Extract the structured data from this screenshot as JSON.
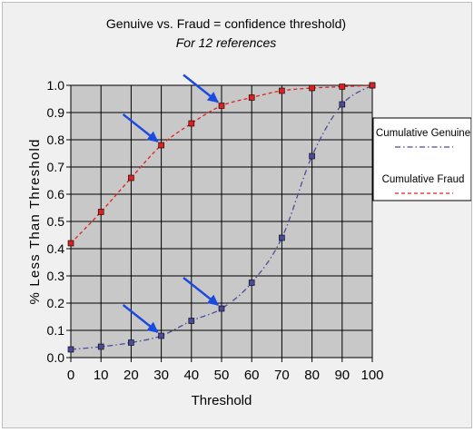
{
  "chart_data": {
    "type": "line",
    "title": "Genuive vs. Fraud = confidence threshold)",
    "subtitle": "For 12 references",
    "xlabel": "Threshold",
    "ylabel": "% Less Than Threshold",
    "xlim": [
      0,
      100
    ],
    "ylim": [
      0,
      1
    ],
    "x_ticks": [
      "0",
      "10",
      "20",
      "30",
      "40",
      "50",
      "60",
      "70",
      "80",
      "90",
      "100"
    ],
    "y_ticks": [
      "0.0",
      "0.1",
      "0.2",
      "0.3",
      "0.4",
      "0.5",
      "0.6",
      "0.7",
      "0.8",
      "0.9",
      "1.0"
    ],
    "grid": true,
    "legend_position": "right",
    "colors": {
      "plot_bg": "#c8c8c8",
      "genuine": "#4a4a9a",
      "fraud": "#e02020",
      "arrow": "#1a4ae0"
    },
    "series": [
      {
        "name": "Cumulative Genuine",
        "x": [
          0,
          10,
          20,
          30,
          40,
          50,
          60,
          70,
          80,
          90,
          100
        ],
        "values": [
          0.03,
          0.04,
          0.055,
          0.08,
          0.135,
          0.18,
          0.275,
          0.44,
          0.74,
          0.93,
          1.0
        ],
        "style": "dash-dot"
      },
      {
        "name": "Cumulative Fraud",
        "x": [
          0,
          10,
          20,
          30,
          40,
          50,
          60,
          70,
          80,
          90,
          100
        ],
        "values": [
          0.42,
          0.535,
          0.66,
          0.78,
          0.86,
          0.925,
          0.955,
          0.98,
          0.99,
          0.995,
          1.0
        ],
        "style": "dashed"
      }
    ],
    "annotations": [
      {
        "type": "arrow",
        "series": "Cumulative Fraud",
        "x": 30
      },
      {
        "type": "arrow",
        "series": "Cumulative Fraud",
        "x": 50
      },
      {
        "type": "arrow",
        "series": "Cumulative Genuine",
        "x": 30
      },
      {
        "type": "arrow",
        "series": "Cumulative Genuine",
        "x": 50
      }
    ]
  }
}
